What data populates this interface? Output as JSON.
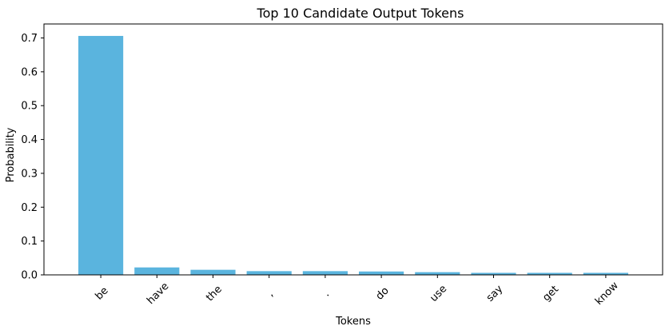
{
  "chart_data": {
    "type": "bar",
    "title": "Top 10 Candidate Output Tokens",
    "xlabel": "Tokens",
    "ylabel": "Probability",
    "categories": [
      "be",
      "have",
      "the",
      ",",
      ".",
      "do",
      "use",
      "say",
      "get",
      "know"
    ],
    "values": [
      0.706,
      0.022,
      0.015,
      0.011,
      0.011,
      0.01,
      0.008,
      0.006,
      0.006,
      0.006
    ],
    "ylim": [
      0,
      0.7413
    ],
    "yticks": [
      "0.0",
      "0.1",
      "0.2",
      "0.3",
      "0.4",
      "0.5",
      "0.6",
      "0.7"
    ],
    "bar_color": "#5ab4de",
    "grid": false,
    "legend": "none"
  }
}
